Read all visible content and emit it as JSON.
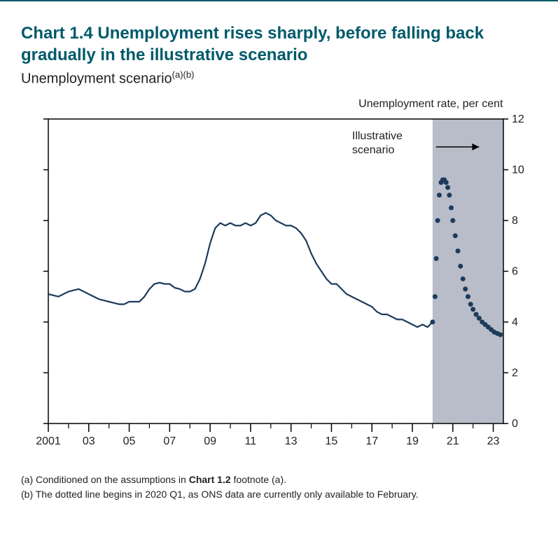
{
  "chart": {
    "number": "Chart 1.4",
    "title_rest": " Unemployment rises sharply, before falling back gradually in the illustrative scenario",
    "subtitle": "Unemployment scenario",
    "subtitle_sup": "(a)(b)",
    "axis_title": "Unemployment rate, per cent",
    "annotation": "Illustrative scenario",
    "type": "line",
    "x_start": 2001,
    "x_end": 2023.5,
    "x_ticks_major": [
      2001,
      2003,
      2005,
      2007,
      2009,
      2011,
      2013,
      2015,
      2017,
      2019,
      2021,
      2023
    ],
    "x_tick_labels": [
      "2001",
      "03",
      "05",
      "07",
      "09",
      "11",
      "13",
      "15",
      "17",
      "19",
      "21",
      "23"
    ],
    "x_ticks_minor": [
      2002,
      2004,
      2006,
      2008,
      2010,
      2012,
      2014,
      2016,
      2018,
      2020,
      2022
    ],
    "ylim": [
      0,
      12
    ],
    "y_ticks": [
      0,
      2,
      4,
      6,
      8,
      10,
      12
    ],
    "shaded_start": 2020,
    "shaded_end": 2023.5,
    "line_color": "#1d3b5c",
    "line_width": 2.2,
    "dot_color": "#1d3b5c",
    "dot_radius": 3.5,
    "shade_color": "#b8bdc9",
    "background_color": "#ffffff",
    "border_color": "#000000",
    "text_color": "#222222",
    "title_color": "#005a6a",
    "title_fontsize": 24,
    "subtitle_fontsize": 20,
    "tick_fontsize": 16,
    "footnote_fontsize": 14,
    "solid_series": [
      [
        2001.0,
        5.1
      ],
      [
        2001.25,
        5.05
      ],
      [
        2001.5,
        5.0
      ],
      [
        2001.75,
        5.1
      ],
      [
        2002.0,
        5.2
      ],
      [
        2002.25,
        5.25
      ],
      [
        2002.5,
        5.3
      ],
      [
        2002.75,
        5.2
      ],
      [
        2003.0,
        5.1
      ],
      [
        2003.25,
        5.0
      ],
      [
        2003.5,
        4.9
      ],
      [
        2003.75,
        4.85
      ],
      [
        2004.0,
        4.8
      ],
      [
        2004.25,
        4.75
      ],
      [
        2004.5,
        4.7
      ],
      [
        2004.75,
        4.7
      ],
      [
        2005.0,
        4.8
      ],
      [
        2005.25,
        4.8
      ],
      [
        2005.5,
        4.8
      ],
      [
        2005.75,
        5.0
      ],
      [
        2006.0,
        5.3
      ],
      [
        2006.25,
        5.5
      ],
      [
        2006.5,
        5.55
      ],
      [
        2006.75,
        5.5
      ],
      [
        2007.0,
        5.5
      ],
      [
        2007.25,
        5.35
      ],
      [
        2007.5,
        5.3
      ],
      [
        2007.75,
        5.2
      ],
      [
        2008.0,
        5.2
      ],
      [
        2008.25,
        5.3
      ],
      [
        2008.5,
        5.7
      ],
      [
        2008.75,
        6.3
      ],
      [
        2009.0,
        7.1
      ],
      [
        2009.25,
        7.7
      ],
      [
        2009.5,
        7.9
      ],
      [
        2009.75,
        7.8
      ],
      [
        2010.0,
        7.9
      ],
      [
        2010.25,
        7.8
      ],
      [
        2010.5,
        7.8
      ],
      [
        2010.75,
        7.9
      ],
      [
        2011.0,
        7.8
      ],
      [
        2011.25,
        7.9
      ],
      [
        2011.5,
        8.2
      ],
      [
        2011.75,
        8.3
      ],
      [
        2012.0,
        8.2
      ],
      [
        2012.25,
        8.0
      ],
      [
        2012.5,
        7.9
      ],
      [
        2012.75,
        7.8
      ],
      [
        2013.0,
        7.8
      ],
      [
        2013.25,
        7.7
      ],
      [
        2013.5,
        7.5
      ],
      [
        2013.75,
        7.2
      ],
      [
        2014.0,
        6.7
      ],
      [
        2014.25,
        6.3
      ],
      [
        2014.5,
        6.0
      ],
      [
        2014.75,
        5.7
      ],
      [
        2015.0,
        5.5
      ],
      [
        2015.25,
        5.5
      ],
      [
        2015.5,
        5.3
      ],
      [
        2015.75,
        5.1
      ],
      [
        2016.0,
        5.0
      ],
      [
        2016.25,
        4.9
      ],
      [
        2016.5,
        4.8
      ],
      [
        2016.75,
        4.7
      ],
      [
        2017.0,
        4.6
      ],
      [
        2017.25,
        4.4
      ],
      [
        2017.5,
        4.3
      ],
      [
        2017.75,
        4.3
      ],
      [
        2018.0,
        4.2
      ],
      [
        2018.25,
        4.1
      ],
      [
        2018.5,
        4.1
      ],
      [
        2018.75,
        4.0
      ],
      [
        2019.0,
        3.9
      ],
      [
        2019.25,
        3.8
      ],
      [
        2019.5,
        3.9
      ],
      [
        2019.75,
        3.8
      ],
      [
        2020.0,
        4.0
      ]
    ],
    "dotted_series": [
      [
        2020.0,
        4.0
      ],
      [
        2020.12,
        5.0
      ],
      [
        2020.18,
        6.5
      ],
      [
        2020.25,
        8.0
      ],
      [
        2020.33,
        9.0
      ],
      [
        2020.42,
        9.5
      ],
      [
        2020.5,
        9.6
      ],
      [
        2020.58,
        9.6
      ],
      [
        2020.67,
        9.5
      ],
      [
        2020.75,
        9.3
      ],
      [
        2020.83,
        9.0
      ],
      [
        2020.92,
        8.5
      ],
      [
        2021.0,
        8.0
      ],
      [
        2021.12,
        7.4
      ],
      [
        2021.25,
        6.8
      ],
      [
        2021.38,
        6.2
      ],
      [
        2021.5,
        5.7
      ],
      [
        2021.62,
        5.3
      ],
      [
        2021.75,
        5.0
      ],
      [
        2021.88,
        4.7
      ],
      [
        2022.0,
        4.5
      ],
      [
        2022.15,
        4.3
      ],
      [
        2022.3,
        4.15
      ],
      [
        2022.45,
        4.0
      ],
      [
        2022.6,
        3.9
      ],
      [
        2022.75,
        3.8
      ],
      [
        2022.9,
        3.7
      ],
      [
        2023.05,
        3.6
      ],
      [
        2023.2,
        3.55
      ],
      [
        2023.35,
        3.5
      ]
    ],
    "arrow": {
      "from_x": 2020.0,
      "to_x": 2022.3,
      "y": 10.9
    }
  },
  "footnotes": {
    "a_pre": "(a)  Conditioned on the assumptions in ",
    "a_bold": "Chart 1.2",
    "a_post": " footnote (a).",
    "b": "(b)  The dotted line begins in 2020 Q1, as ONS data are currently only available to February."
  }
}
